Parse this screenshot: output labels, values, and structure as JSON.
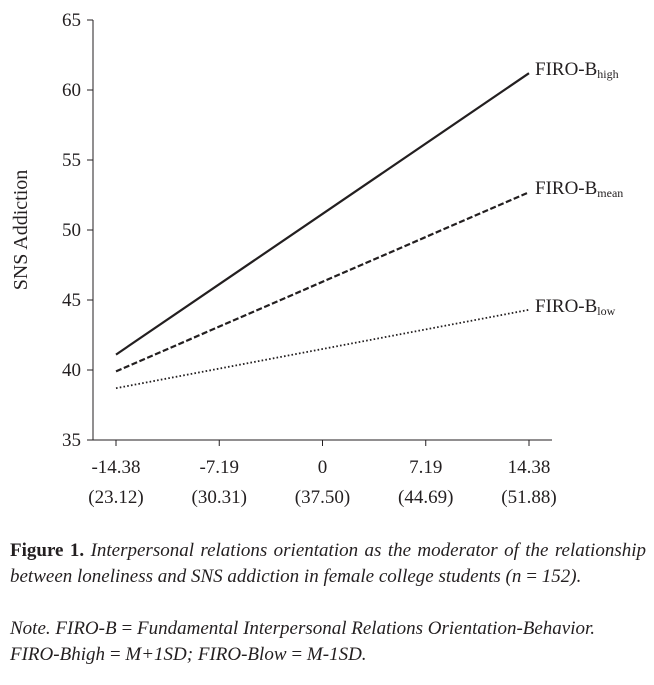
{
  "chart_data": {
    "type": "line",
    "ylabel": "SNS Addiction",
    "xlabel": "",
    "ylim": [
      35,
      65
    ],
    "yticks": [
      35,
      40,
      45,
      50,
      55,
      60,
      65
    ],
    "x": [
      -14.38,
      14.38
    ],
    "xtick_values": [
      -14.38,
      -7.19,
      0,
      7.19,
      14.38
    ],
    "xtick_labels": [
      "-14.38",
      "-7.19",
      "0",
      "7.19",
      "14.38"
    ],
    "xtick_sublabels": [
      "(23.12)",
      "(30.31)",
      "(37.50)",
      "(44.69)",
      "(51.88)"
    ],
    "grid": false,
    "legend": "series labels at right end of each line",
    "series": [
      {
        "name": "FIRO-B",
        "subscript": "high",
        "values": [
          41.1,
          61.2
        ],
        "style": "solid",
        "color": "#231f20"
      },
      {
        "name": "FIRO-B",
        "subscript": "mean",
        "values": [
          39.9,
          52.7
        ],
        "style": "dashed",
        "color": "#231f20"
      },
      {
        "name": "FIRO-B",
        "subscript": "low",
        "values": [
          38.7,
          44.3
        ],
        "style": "dotted",
        "color": "#231f20"
      }
    ]
  },
  "caption": {
    "label": "Figure 1.",
    "text": "Interpersonal relations orientation as the moderator of the relationship between loneliness and SNS addiction in female college students (n = 152).",
    "note": "Note. FIRO-B = Fundamental Interpersonal Relations Orientation-Behavior. FIRO-Bhigh = M+1SD; FIRO-Blow = M-1SD."
  }
}
